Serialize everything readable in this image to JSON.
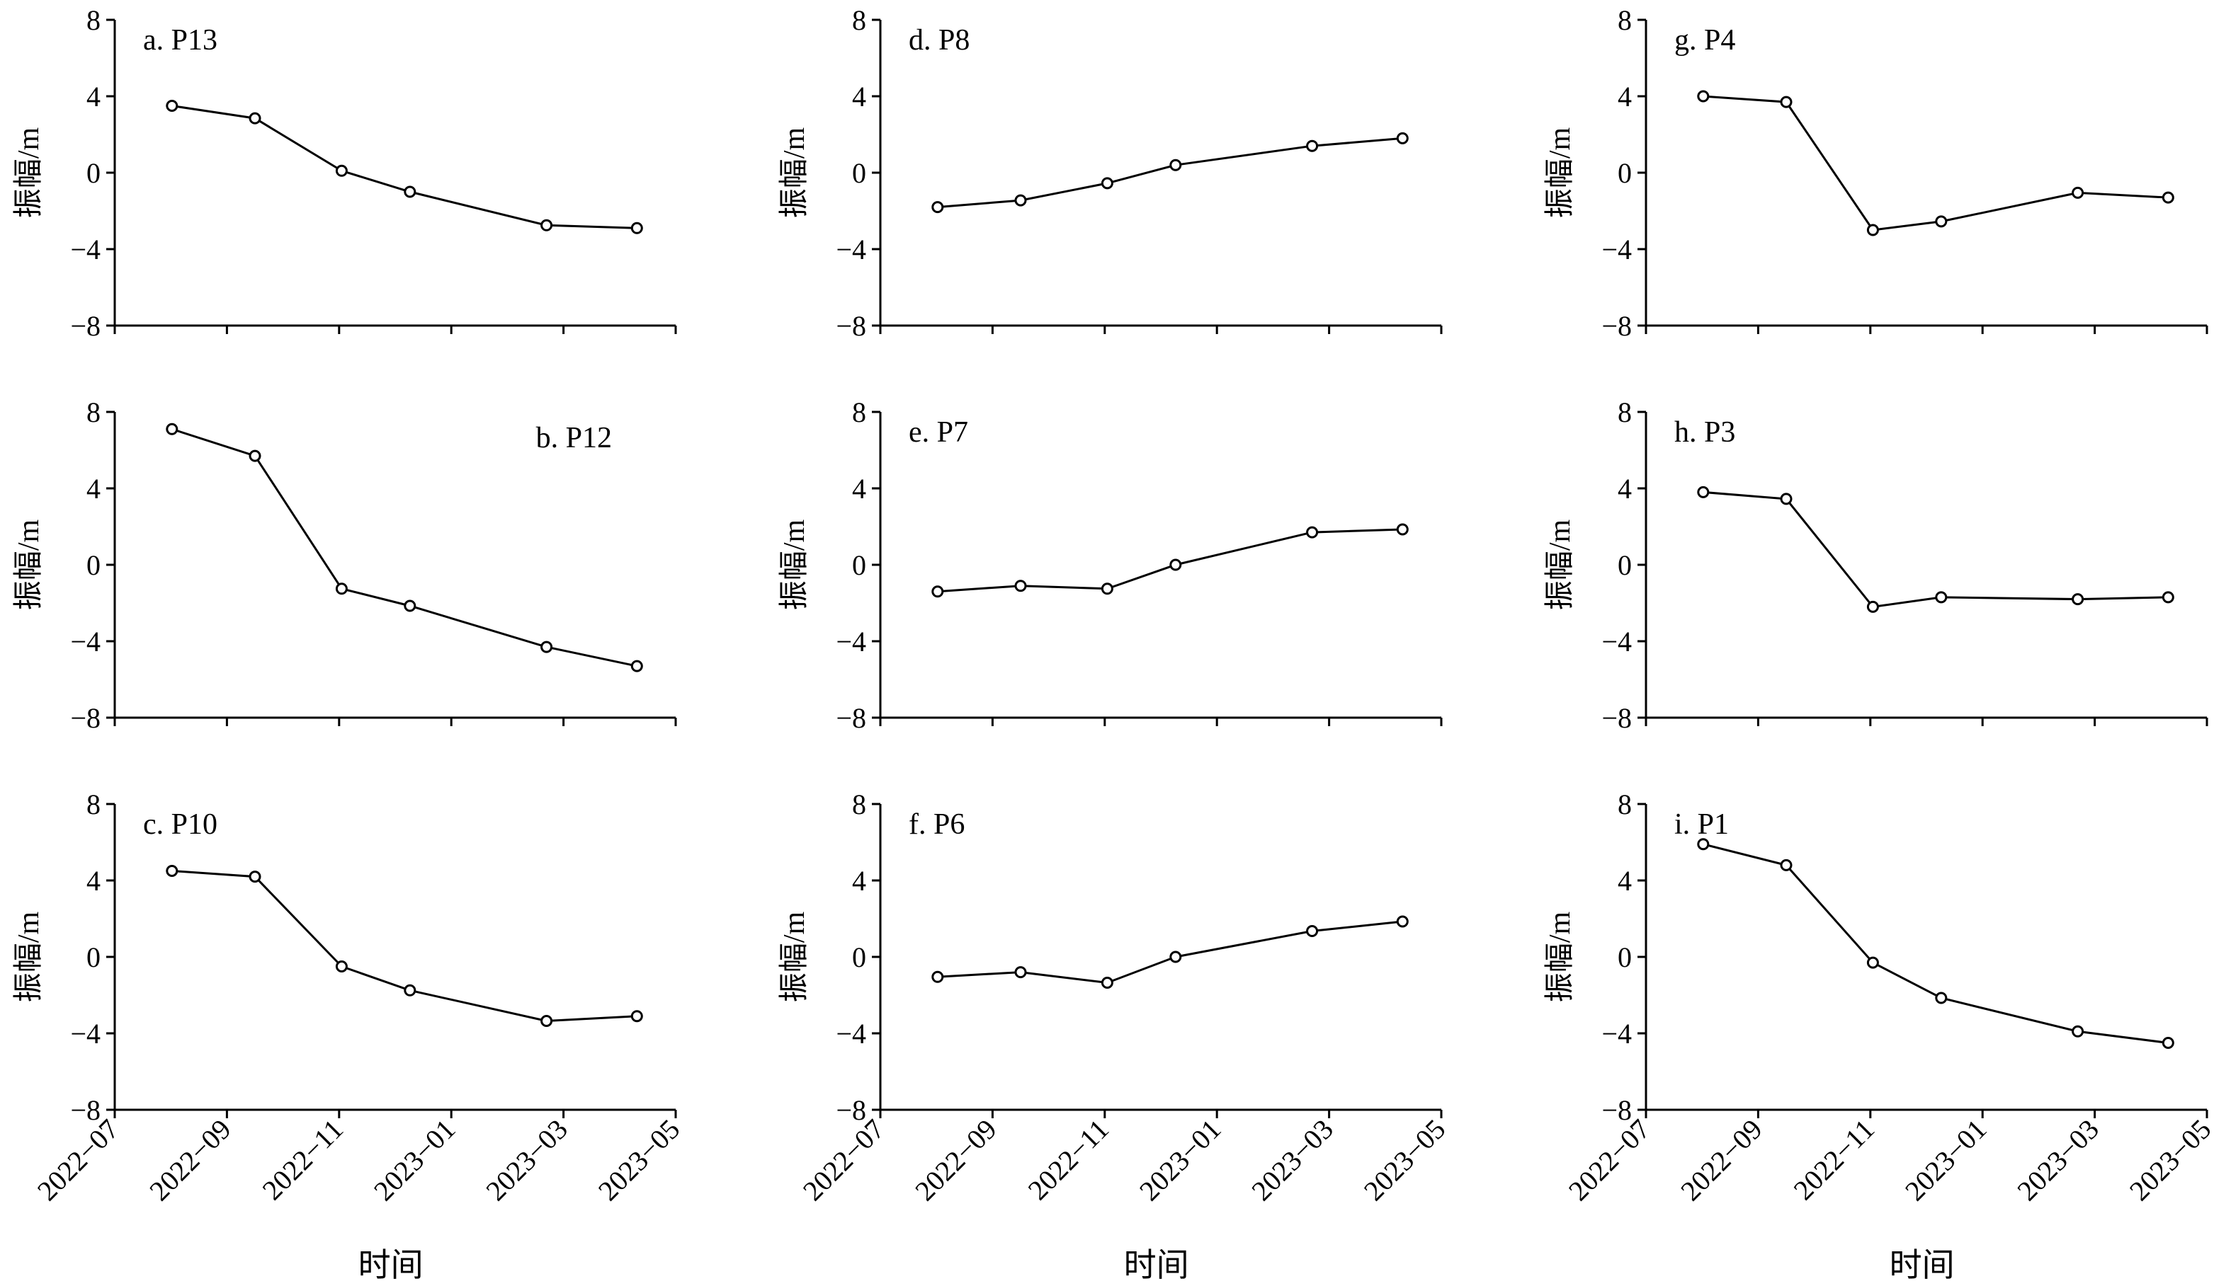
{
  "chart_data": [
    {
      "type": "line",
      "title": "a. P13",
      "ylabel": "振幅/m",
      "xlabel": "",
      "ylim": [
        -8,
        8
      ],
      "yticks": [
        "8",
        "4",
        "0",
        "−4",
        "−8"
      ],
      "xticks": [],
      "label_position": "top-left",
      "x": [
        "2022-08-01",
        "2022-09-15",
        "2022-11-01",
        "2022-12-08",
        "2023-02-20",
        "2023-04-10"
      ],
      "series": [
        {
          "values": [
            3.5,
            2.85,
            0.1,
            -1.0,
            -2.75,
            -2.9
          ]
        }
      ]
    },
    {
      "type": "line",
      "title": "b. P12",
      "ylabel": "振幅/m",
      "xlabel": "",
      "ylim": [
        -8,
        8
      ],
      "yticks": [
        "8",
        "4",
        "0",
        "−4",
        "−8"
      ],
      "xticks": [],
      "label_position": "top-right",
      "x": [
        "2022-08-01",
        "2022-09-15",
        "2022-11-01",
        "2022-12-08",
        "2023-02-20",
        "2023-04-10"
      ],
      "series": [
        {
          "values": [
            7.1,
            5.7,
            -1.25,
            -2.15,
            -4.3,
            -5.3
          ]
        }
      ]
    },
    {
      "type": "line",
      "title": "c. P10",
      "ylabel": "振幅/m",
      "xlabel": "时间",
      "ylim": [
        -8,
        8
      ],
      "yticks": [
        "8",
        "4",
        "0",
        "−4",
        "−8"
      ],
      "xticks": [
        "2022−07",
        "2022−09",
        "2022−11",
        "2023−01",
        "2023−03",
        "2023−05"
      ],
      "label_position": "top-left",
      "x": [
        "2022-08-01",
        "2022-09-15",
        "2022-11-01",
        "2022-12-08",
        "2023-02-20",
        "2023-04-10"
      ],
      "series": [
        {
          "values": [
            4.5,
            4.2,
            -0.5,
            -1.75,
            -3.35,
            -3.1
          ]
        }
      ]
    },
    {
      "type": "line",
      "title": "d. P8",
      "ylabel": "振幅/m",
      "xlabel": "",
      "ylim": [
        -8,
        8
      ],
      "yticks": [
        "8",
        "4",
        "0",
        "−4",
        "−8"
      ],
      "xticks": [],
      "label_position": "top-left",
      "x": [
        "2022-08-01",
        "2022-09-15",
        "2022-11-01",
        "2022-12-08",
        "2023-02-20",
        "2023-04-10"
      ],
      "series": [
        {
          "values": [
            -1.8,
            -1.45,
            -0.55,
            0.4,
            1.4,
            1.8
          ]
        }
      ]
    },
    {
      "type": "line",
      "title": "e. P7",
      "ylabel": "振幅/m",
      "xlabel": "",
      "ylim": [
        -8,
        8
      ],
      "yticks": [
        "8",
        "4",
        "0",
        "−4",
        "−8"
      ],
      "xticks": [],
      "label_position": "top-left",
      "x": [
        "2022-08-01",
        "2022-09-15",
        "2022-11-01",
        "2022-12-08",
        "2023-02-20",
        "2023-04-10"
      ],
      "series": [
        {
          "values": [
            -1.4,
            -1.1,
            -1.25,
            0.0,
            1.7,
            1.85
          ]
        }
      ]
    },
    {
      "type": "line",
      "title": "f. P6",
      "ylabel": "振幅/m",
      "xlabel": "时间",
      "ylim": [
        -8,
        8
      ],
      "yticks": [
        "8",
        "4",
        "0",
        "−4",
        "−8"
      ],
      "xticks": [
        "2022−07",
        "2022−09",
        "2022−11",
        "2023−01",
        "2023−03",
        "2023−05"
      ],
      "label_position": "top-left",
      "x": [
        "2022-08-01",
        "2022-09-15",
        "2022-11-01",
        "2022-12-08",
        "2023-02-20",
        "2023-04-10"
      ],
      "series": [
        {
          "values": [
            -1.05,
            -0.8,
            -1.35,
            0.0,
            1.35,
            1.85
          ]
        }
      ]
    },
    {
      "type": "line",
      "title": "g. P4",
      "ylabel": "振幅/m",
      "xlabel": "",
      "ylim": [
        -8,
        8
      ],
      "yticks": [
        "8",
        "4",
        "0",
        "−4",
        "−8"
      ],
      "xticks": [],
      "label_position": "top-left",
      "x": [
        "2022-08-01",
        "2022-09-15",
        "2022-11-01",
        "2022-12-08",
        "2023-02-20",
        "2023-04-10"
      ],
      "series": [
        {
          "values": [
            4.0,
            3.7,
            -3.0,
            -2.55,
            -1.05,
            -1.3
          ]
        }
      ]
    },
    {
      "type": "line",
      "title": "h. P3",
      "ylabel": "振幅/m",
      "xlabel": "",
      "ylim": [
        -8,
        8
      ],
      "yticks": [
        "8",
        "4",
        "0",
        "−4",
        "−8"
      ],
      "xticks": [],
      "label_position": "top-left",
      "x": [
        "2022-08-01",
        "2022-09-15",
        "2022-11-01",
        "2022-12-08",
        "2023-02-20",
        "2023-04-10"
      ],
      "series": [
        {
          "values": [
            3.8,
            3.45,
            -2.2,
            -1.7,
            -1.8,
            -1.7
          ]
        }
      ]
    },
    {
      "type": "line",
      "title": "i. P1",
      "ylabel": "振幅/m",
      "xlabel": "时间",
      "ylim": [
        -8,
        8
      ],
      "yticks": [
        "8",
        "4",
        "0",
        "−4",
        "−8"
      ],
      "xticks": [
        "2022−07",
        "2022−09",
        "2022−11",
        "2023−01",
        "2023−03",
        "2023−05"
      ],
      "label_position": "top-left",
      "x": [
        "2022-08-01",
        "2022-09-15",
        "2022-11-01",
        "2022-12-08",
        "2023-02-20",
        "2023-04-10"
      ],
      "series": [
        {
          "values": [
            5.9,
            4.8,
            -0.3,
            -2.15,
            -3.9,
            -4.5
          ]
        }
      ]
    }
  ],
  "x_axis": {
    "start": "2022-07-01",
    "end": "2023-05-01"
  }
}
